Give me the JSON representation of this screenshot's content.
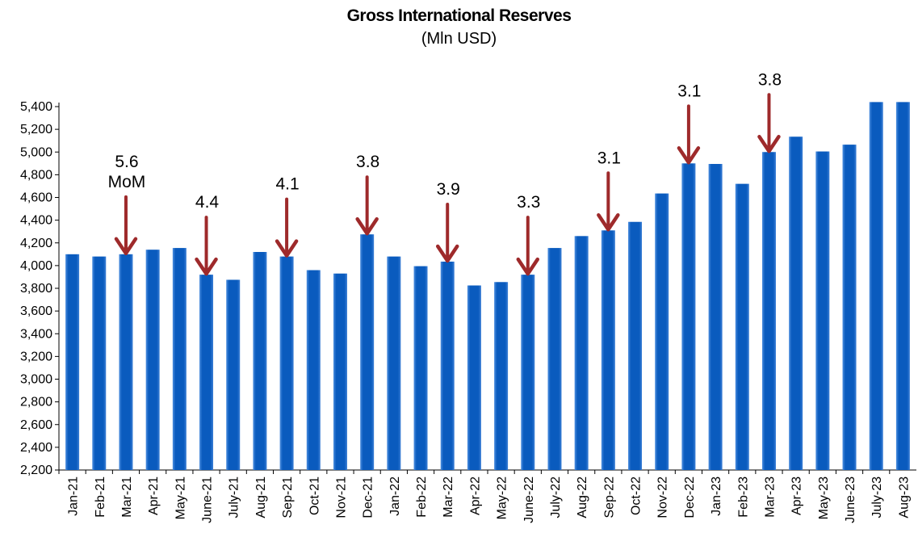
{
  "chart_data": {
    "type": "bar",
    "title": "Gross International Reserves",
    "subtitle": "(Mln USD)",
    "categories": [
      "Jan-21",
      "Feb-21",
      "Mar-21",
      "Apr-21",
      "May-21",
      "June-21",
      "July-21",
      "Aug-21",
      "Sep-21",
      "Oct-21",
      "Nov-21",
      "Dec-21",
      "Jan-22",
      "Feb-22",
      "Mar-22",
      "Apr-22",
      "May-22",
      "June-22",
      "July-22",
      "Aug-22",
      "Sep-22",
      "Oct-22",
      "Nov-22",
      "Dec-22",
      "Jan-23",
      "Feb-23",
      "Mar-23",
      "Apr-23",
      "May-23",
      "June-23",
      "July-23",
      "Aug-23"
    ],
    "values": [
      4100,
      4080,
      4100,
      4140,
      4155,
      3920,
      3875,
      4120,
      4080,
      3960,
      3930,
      4275,
      4080,
      3995,
      4035,
      3825,
      3855,
      3920,
      4155,
      4260,
      4310,
      4385,
      4635,
      4900,
      4895,
      4720,
      5000,
      5135,
      5005,
      5065,
      5440,
      5440
    ],
    "ylim": [
      2200,
      5500
    ],
    "yticks": [
      2200,
      2400,
      2600,
      2800,
      3000,
      3200,
      3400,
      3600,
      3800,
      4000,
      4200,
      4400,
      4600,
      4800,
      5000,
      5200,
      5400
    ],
    "ytick_labels": [
      "2,200",
      "2,400",
      "2,600",
      "2,800",
      "3,000",
      "3,200",
      "3,400",
      "3,600",
      "3,800",
      "4,000",
      "4,200",
      "4,400",
      "4,600",
      "4,800",
      "5,000",
      "5,200",
      "5,400"
    ],
    "bar_color": "#0a5bbe",
    "bar_highlight": "#4d8fe0",
    "arrow_color": "#9e2a2b",
    "annotations": [
      {
        "index": 2,
        "lines": [
          "5.6",
          "MoM"
        ]
      },
      {
        "index": 5,
        "lines": [
          "4.4"
        ]
      },
      {
        "index": 8,
        "lines": [
          "4.1"
        ]
      },
      {
        "index": 11,
        "lines": [
          "3.8"
        ]
      },
      {
        "index": 14,
        "lines": [
          "3.9"
        ]
      },
      {
        "index": 17,
        "lines": [
          "3.3"
        ]
      },
      {
        "index": 20,
        "lines": [
          "3.1"
        ]
      },
      {
        "index": 23,
        "lines": [
          "3.1"
        ]
      },
      {
        "index": 26,
        "lines": [
          "3.8"
        ]
      }
    ],
    "grid": false,
    "legend": "none"
  }
}
